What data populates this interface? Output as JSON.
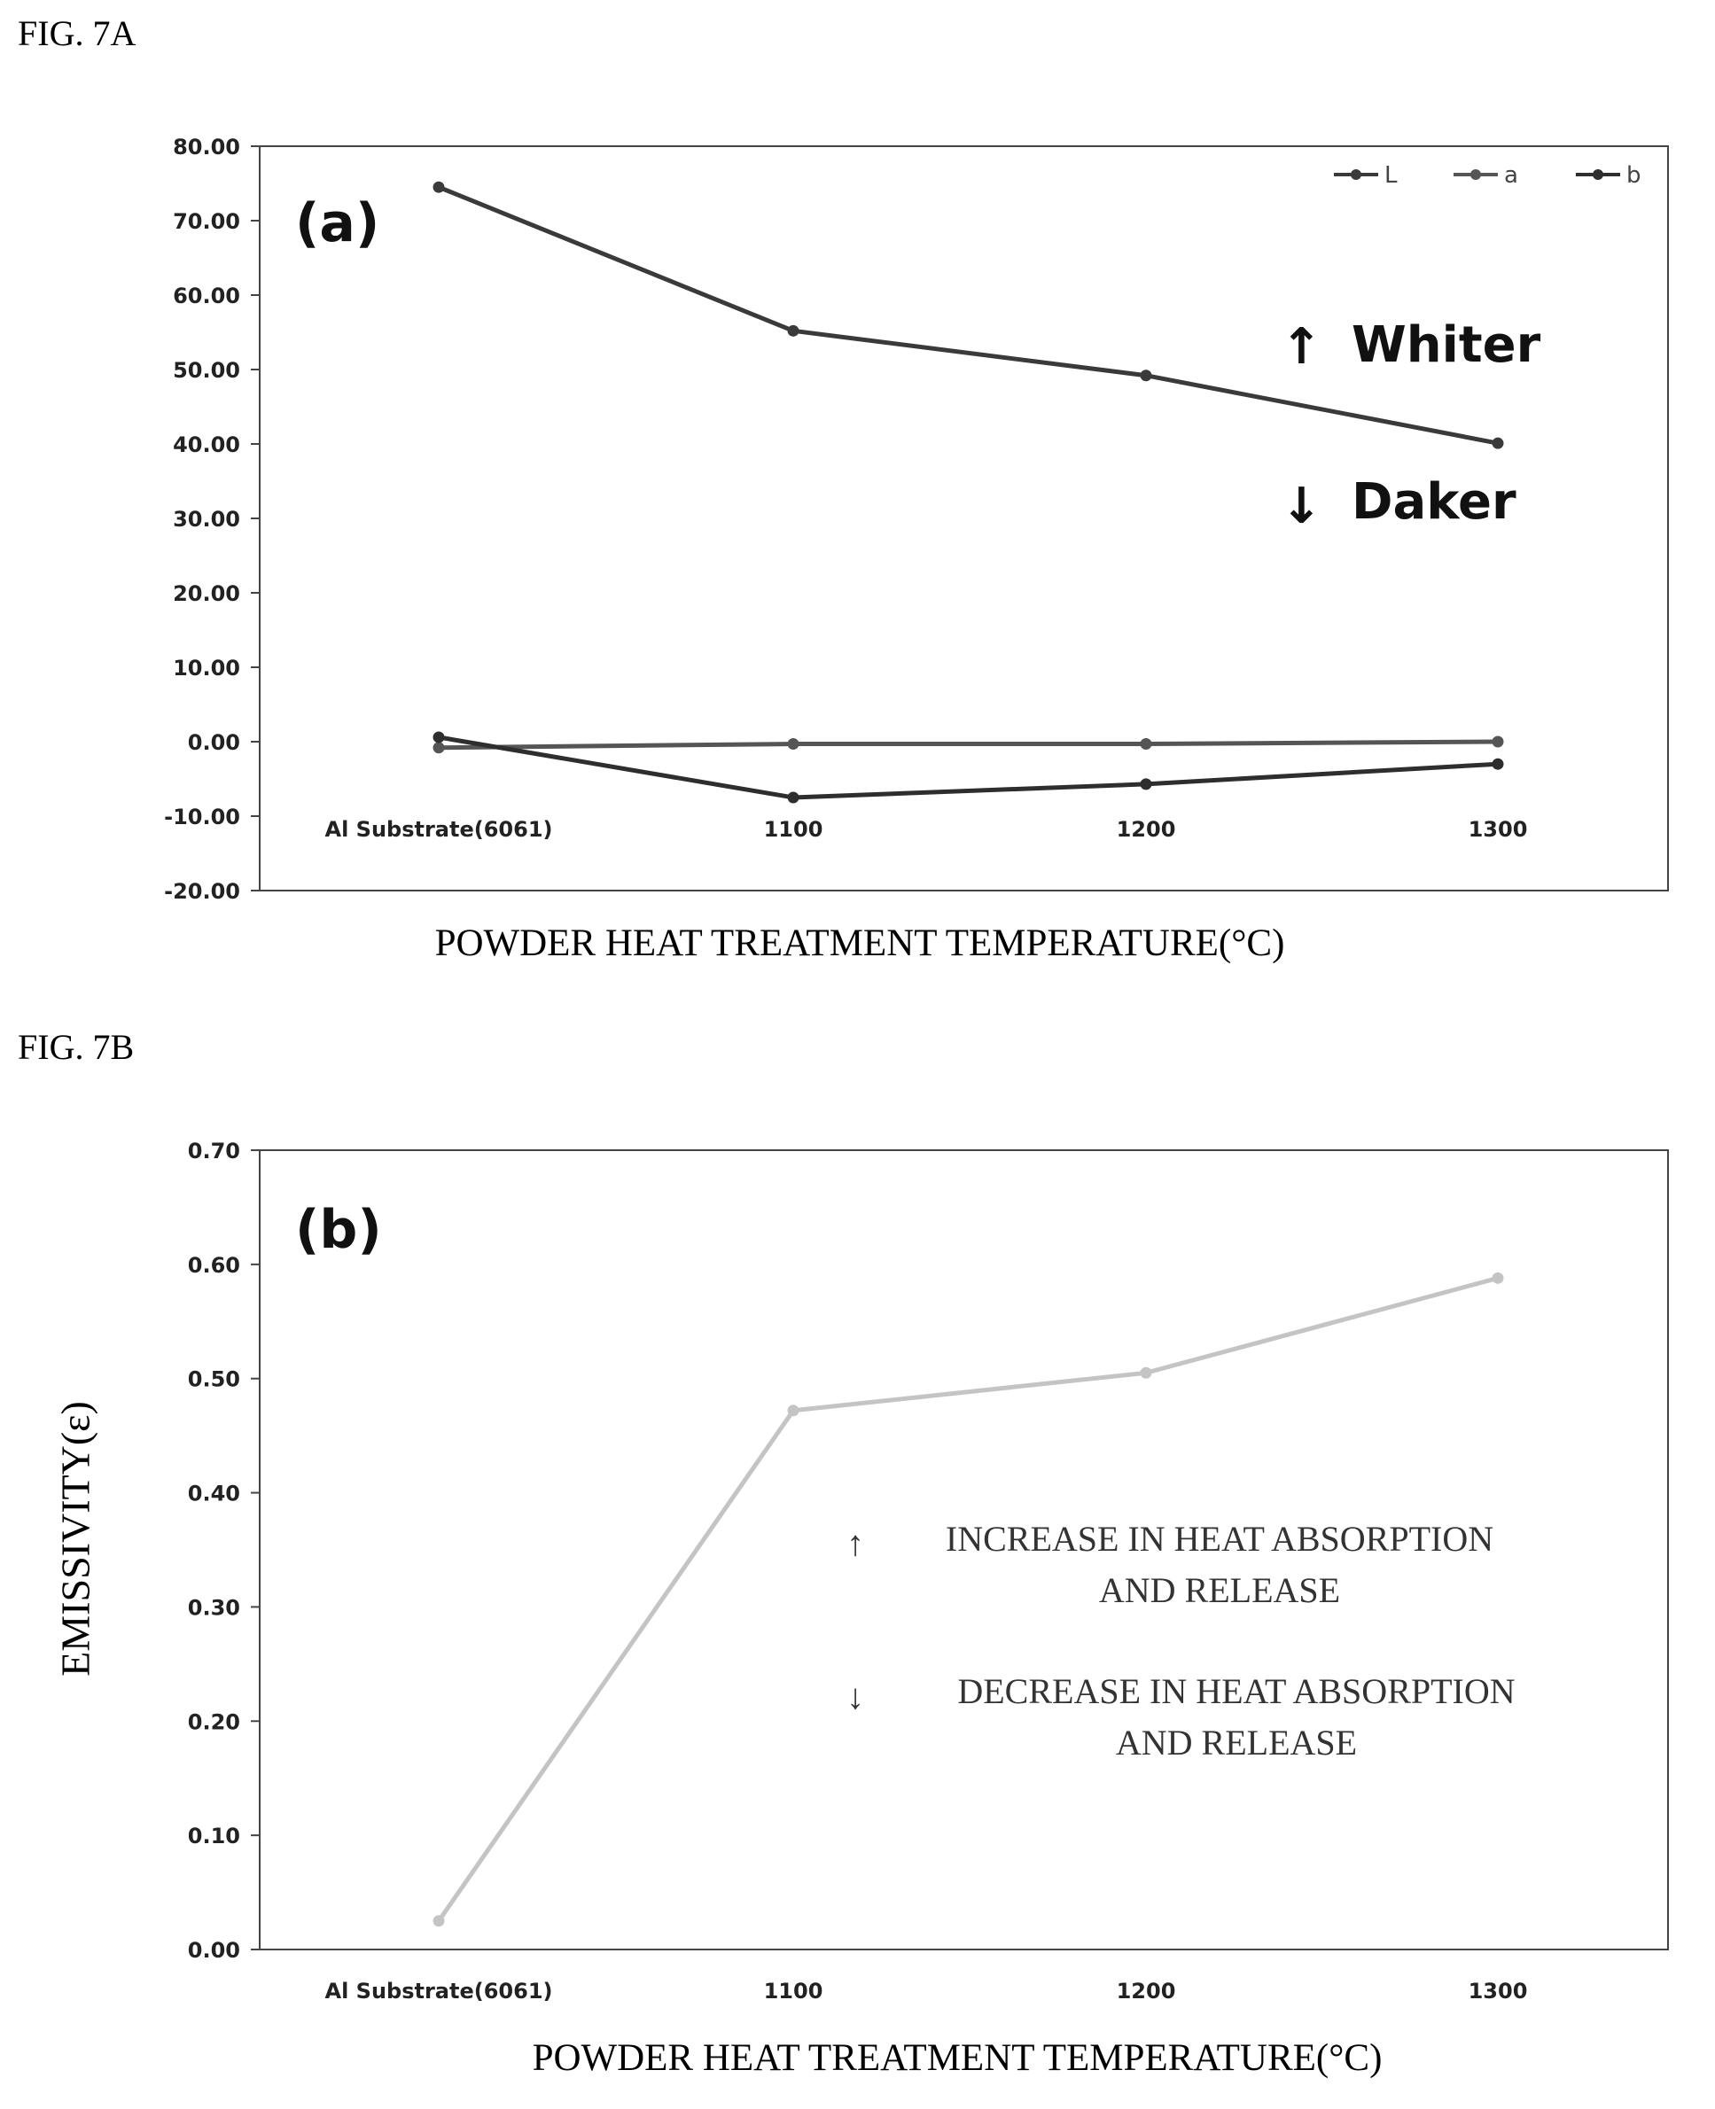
{
  "figures": {
    "a_label": "FIG. 7A",
    "b_label": "FIG. 7B"
  },
  "chart_data": [
    {
      "type": "line",
      "panel_label": "(a)",
      "categories": [
        "Al Substrate(6061)",
        "1100",
        "1200",
        "1300"
      ],
      "series": [
        {
          "name": "L",
          "values": [
            74.5,
            55.2,
            49.2,
            40.1
          ]
        },
        {
          "name": "a",
          "values": [
            -0.8,
            -0.3,
            -0.3,
            0.0
          ]
        },
        {
          "name": "b",
          "values": [
            0.6,
            -7.5,
            -5.7,
            -3.0
          ]
        }
      ],
      "xlabel": "POWDER HEAT TREATMENT TEMPERATURE(°C)",
      "ylabel": "",
      "ylim": [
        -20,
        80
      ],
      "yticks": [
        "80.00",
        "70.00",
        "60.00",
        "50.00",
        "40.00",
        "30.00",
        "20.00",
        "10.00",
        "0.00",
        "-10.00",
        "-20.00"
      ],
      "legend_position": "top-right",
      "annotations": {
        "up_arrow": "↑",
        "up_text": "Whiter",
        "down_arrow": "↓",
        "down_text": "Daker"
      },
      "grid": false
    },
    {
      "type": "line",
      "panel_label": "(b)",
      "categories": [
        "Al Substrate(6061)",
        "1100",
        "1200",
        "1300"
      ],
      "series": [
        {
          "values": [
            0.025,
            0.472,
            0.505,
            0.588
          ]
        }
      ],
      "xlabel": "POWDER HEAT TREATMENT TEMPERATURE(°C)",
      "ylabel": "EMISSIVITY(ε)",
      "ylim": [
        0,
        0.7
      ],
      "yticks": [
        "0.70",
        "0.60",
        "0.50",
        "0.40",
        "0.30",
        "0.20",
        "0.10",
        "0.00"
      ],
      "annotations": {
        "up_arrow": "↑",
        "up_line1": "INCREASE IN HEAT ABSORPTION",
        "up_line2": "AND RELEASE",
        "down_arrow": "↓",
        "down_line1": "DECREASE IN HEAT ABSORPTION",
        "down_line2": "AND RELEASE"
      },
      "grid": false
    }
  ],
  "colors": {
    "series_a": [
      "#3a3a3a",
      "#555555",
      "#2e2e2e"
    ],
    "series_b": "#c4c4c4",
    "axis": "#444444"
  }
}
